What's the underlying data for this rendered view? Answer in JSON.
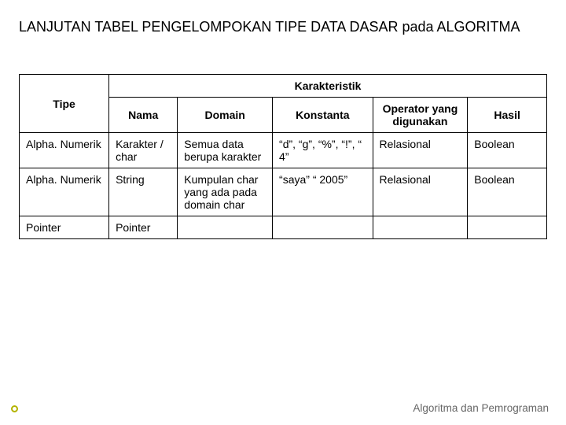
{
  "title": "LANJUTAN TABEL PENGELOMPOKAN TIPE DATA DASAR pada ALGORITMA",
  "footer": "Algoritma dan Pemrograman",
  "table": {
    "header": {
      "tipe": "Tipe",
      "karakteristik": "Karakteristik",
      "nama": "Nama",
      "domain": "Domain",
      "konstanta": "Konstanta",
      "operator": "Operator yang digunakan",
      "hasil": "Hasil"
    },
    "rows": [
      {
        "tipe": "Alpha. Numerik",
        "nama": "Karakter / char",
        "domain": "Semua data berupa karakter",
        "konstanta": "“d”, “g”, “%”, “!”, “ 4”",
        "operator": "Relasional",
        "hasil": "Boolean"
      },
      {
        "tipe": "Alpha. Numerik",
        "nama": "String",
        "domain": "Kumpulan char yang ada pada domain char",
        "konstanta": "“saya” “ 2005”",
        "operator": "Relasional",
        "hasil": "Boolean"
      },
      {
        "tipe": "Pointer",
        "nama": "Pointer",
        "domain": "",
        "konstanta": "",
        "operator": "",
        "hasil": ""
      }
    ]
  },
  "colors": {
    "text": "#000000",
    "footer_text": "#666666",
    "bullet_border": "#b3b300",
    "border": "#000000",
    "background": "#ffffff"
  },
  "fonts": {
    "title_size": 18,
    "cell_size": 14,
    "footer_size": 13.5,
    "family": "Verdana"
  }
}
